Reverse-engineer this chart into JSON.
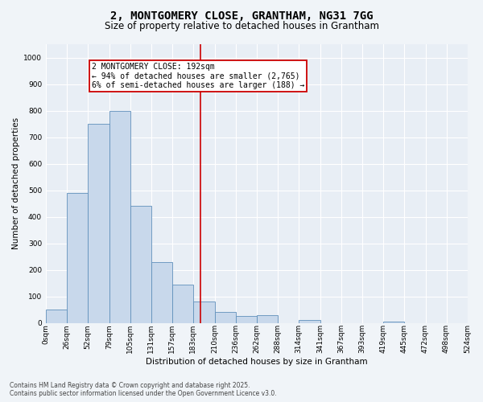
{
  "title": "2, MONTGOMERY CLOSE, GRANTHAM, NG31 7GG",
  "subtitle": "Size of property relative to detached houses in Grantham",
  "xlabel": "Distribution of detached houses by size in Grantham",
  "ylabel": "Number of detached properties",
  "bin_labels": [
    "0sqm",
    "26sqm",
    "52sqm",
    "79sqm",
    "105sqm",
    "131sqm",
    "157sqm",
    "183sqm",
    "210sqm",
    "236sqm",
    "262sqm",
    "288sqm",
    "314sqm",
    "341sqm",
    "367sqm",
    "393sqm",
    "419sqm",
    "445sqm",
    "472sqm",
    "498sqm",
    "524sqm"
  ],
  "bin_edges": [
    0,
    26,
    52,
    79,
    105,
    131,
    157,
    183,
    210,
    236,
    262,
    288,
    314,
    341,
    367,
    393,
    419,
    445,
    472,
    498,
    524
  ],
  "bar_heights": [
    50,
    490,
    750,
    800,
    440,
    230,
    145,
    80,
    40,
    25,
    30,
    0,
    10,
    0,
    0,
    0,
    5,
    0,
    0,
    0
  ],
  "bar_color": "#c8d8eb",
  "bar_edge_color": "#6090bb",
  "property_line_x": 192,
  "property_line_color": "#cc0000",
  "annotation_text": "2 MONTGOMERY CLOSE: 192sqm\n← 94% of detached houses are smaller (2,765)\n6% of semi-detached houses are larger (188) →",
  "annotation_box_color": "#cc0000",
  "ylim": [
    0,
    1050
  ],
  "yticks": [
    0,
    100,
    200,
    300,
    400,
    500,
    600,
    700,
    800,
    900,
    1000
  ],
  "background_color": "#e8eef5",
  "grid_color": "#ffffff",
  "footer_line1": "Contains HM Land Registry data © Crown copyright and database right 2025.",
  "footer_line2": "Contains public sector information licensed under the Open Government Licence v3.0.",
  "title_fontsize": 10,
  "subtitle_fontsize": 8.5,
  "axis_label_fontsize": 7.5,
  "tick_fontsize": 6.5,
  "annotation_fontsize": 7,
  "fig_width": 6.0,
  "fig_height": 5.0,
  "fig_dpi": 100
}
